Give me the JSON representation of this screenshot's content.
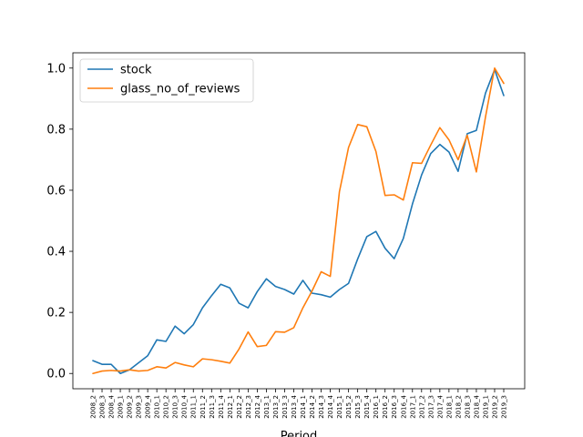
{
  "chart_data": {
    "type": "line",
    "xlabel": "Period",
    "ylabel": "",
    "title": "",
    "ylim": [
      -0.05,
      1.05
    ],
    "yticks": [
      0.0,
      0.2,
      0.4,
      0.6,
      0.8,
      1.0
    ],
    "ytick_labels": [
      "0.0",
      "0.2",
      "0.4",
      "0.6",
      "0.8",
      "1.0"
    ],
    "grid": false,
    "legend_position": "upper-left",
    "categories": [
      "2008_2",
      "2008_3",
      "2008_4",
      "2009_1",
      "2009_2",
      "2009_3",
      "2009_4",
      "2010_1",
      "2010_2",
      "2010_3",
      "2010_4",
      "2011_1",
      "2011_2",
      "2011_3",
      "2011_4",
      "2012_1",
      "2012_2",
      "2012_3",
      "2012_4",
      "2013_1",
      "2013_2",
      "2013_3",
      "2013_4",
      "2014_1",
      "2014_2",
      "2014_3",
      "2014_4",
      "2015_1",
      "2015_2",
      "2015_3",
      "2015_4",
      "2016_1",
      "2016_2",
      "2016_3",
      "2016_4",
      "2017_1",
      "2017_2",
      "2017_3",
      "2017_4",
      "2018_1",
      "2018_2",
      "2018_3",
      "2018_4",
      "2019_1",
      "2019_2",
      "2019_3"
    ],
    "series": [
      {
        "name": "stock",
        "color": "#1f77b4",
        "values": [
          0.042,
          0.03,
          0.03,
          0.0,
          0.012,
          0.035,
          0.058,
          0.11,
          0.105,
          0.155,
          0.13,
          0.16,
          0.215,
          0.255,
          0.292,
          0.28,
          0.23,
          0.215,
          0.268,
          0.31,
          0.285,
          0.275,
          0.26,
          0.305,
          0.263,
          0.258,
          0.25,
          0.275,
          0.295,
          0.375,
          0.448,
          0.465,
          0.41,
          0.376,
          0.442,
          0.555,
          0.65,
          0.72,
          0.75,
          0.725,
          0.662,
          0.785,
          0.796,
          0.918,
          0.995,
          0.91
        ]
      },
      {
        "name": "glass_no_of_reviews",
        "color": "#ff7f0e",
        "values": [
          0.0,
          0.008,
          0.01,
          0.008,
          0.012,
          0.008,
          0.01,
          0.022,
          0.018,
          0.036,
          0.028,
          0.022,
          0.048,
          0.045,
          0.04,
          0.034,
          0.08,
          0.136,
          0.088,
          0.092,
          0.137,
          0.135,
          0.15,
          0.215,
          0.27,
          0.333,
          0.318,
          0.595,
          0.74,
          0.815,
          0.808,
          0.727,
          0.583,
          0.585,
          0.568,
          0.69,
          0.688,
          0.748,
          0.805,
          0.765,
          0.7,
          0.78,
          0.66,
          0.84,
          1.0,
          0.95
        ]
      }
    ]
  }
}
